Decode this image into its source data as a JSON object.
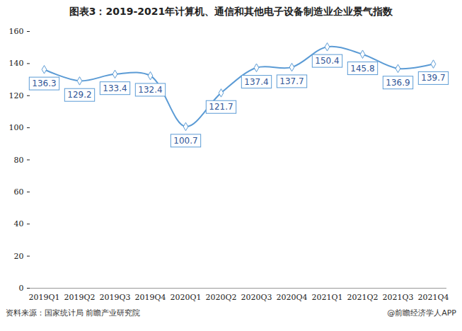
{
  "chart_data": {
    "type": "line",
    "title": "图表3：2019-2021年计算机、通信和其他电子设备制造业企业景气指数",
    "categories": [
      "2019Q1",
      "2019Q2",
      "2019Q3",
      "2019Q4",
      "2020Q1",
      "2020Q2",
      "2020Q3",
      "2020Q4",
      "2021Q1",
      "2021Q2",
      "2021Q3",
      "2021Q4"
    ],
    "values": [
      136.3,
      129.2,
      133.4,
      132.4,
      100.7,
      121.7,
      137.4,
      137.7,
      150.4,
      145.8,
      136.9,
      139.7
    ],
    "color": "#5b9bd5",
    "marker": "diamond",
    "ylim": [
      0,
      160
    ],
    "yticks": [
      0,
      20,
      40,
      60,
      80,
      100,
      120,
      140,
      160
    ],
    "grid": false,
    "data_labels": true,
    "source": "资料来源：国家统计局 前瞻产业研究院",
    "credit": "@前瞻经济学人APP"
  }
}
